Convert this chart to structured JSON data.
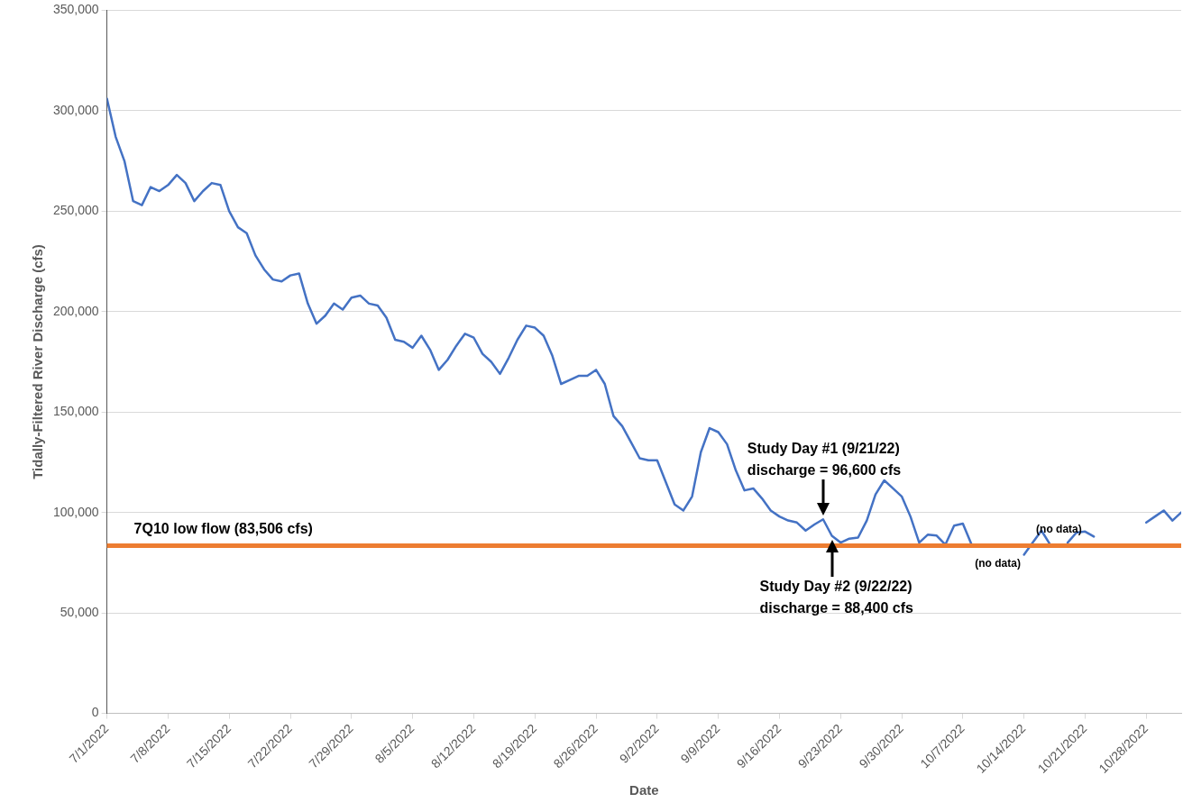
{
  "chart_data": {
    "type": "line",
    "xlabel": "Date",
    "ylabel": "Tidally-Filtered River Discharge (cfs)",
    "xlim": [
      "2022-07-01",
      "2022-11-01"
    ],
    "xticks": [
      {
        "value": "2022-07-01",
        "label": "7/1/2022"
      },
      {
        "value": "2022-07-08",
        "label": "7/8/2022"
      },
      {
        "value": "2022-07-15",
        "label": "7/15/2022"
      },
      {
        "value": "2022-07-22",
        "label": "7/22/2022"
      },
      {
        "value": "2022-07-29",
        "label": "7/29/2022"
      },
      {
        "value": "2022-08-05",
        "label": "8/5/2022"
      },
      {
        "value": "2022-08-12",
        "label": "8/12/2022"
      },
      {
        "value": "2022-08-19",
        "label": "8/19/2022"
      },
      {
        "value": "2022-08-26",
        "label": "8/26/2022"
      },
      {
        "value": "2022-09-02",
        "label": "9/2/2022"
      },
      {
        "value": "2022-09-09",
        "label": "9/9/2022"
      },
      {
        "value": "2022-09-16",
        "label": "9/16/2022"
      },
      {
        "value": "2022-09-23",
        "label": "9/23/2022"
      },
      {
        "value": "2022-09-30",
        "label": "9/30/2022"
      },
      {
        "value": "2022-10-07",
        "label": "10/7/2022"
      },
      {
        "value": "2022-10-14",
        "label": "10/14/2022"
      },
      {
        "value": "2022-10-21",
        "label": "10/21/2022"
      },
      {
        "value": "2022-10-28",
        "label": "10/28/2022"
      }
    ],
    "ylim": [
      0,
      350000
    ],
    "yticks": [
      0,
      {
        "value": 50000,
        "label": "50,000"
      },
      {
        "value": 100000,
        "label": "100,000"
      },
      {
        "value": 150000,
        "label": "150,000"
      },
      {
        "value": 200000,
        "label": "200,000"
      },
      {
        "value": 250000,
        "label": "250,000"
      },
      {
        "value": 300000,
        "label": "300,000"
      },
      {
        "value": 350000,
        "label": "350,000"
      }
    ],
    "grid": "y",
    "legend": false,
    "marker": "none",
    "line_style": "solid",
    "series": [
      {
        "color": "#4472c4",
        "x": [
          "2022-07-01",
          "2022-07-02",
          "2022-07-03",
          "2022-07-04",
          "2022-07-05",
          "2022-07-06",
          "2022-07-07",
          "2022-07-08",
          "2022-07-09",
          "2022-07-10",
          "2022-07-11",
          "2022-07-12",
          "2022-07-13",
          "2022-07-14",
          "2022-07-15",
          "2022-07-16",
          "2022-07-17",
          "2022-07-18",
          "2022-07-19",
          "2022-07-20",
          "2022-07-21",
          "2022-07-22",
          "2022-07-23",
          "2022-07-24",
          "2022-07-25",
          "2022-07-26",
          "2022-07-27",
          "2022-07-28",
          "2022-07-29",
          "2022-07-30",
          "2022-07-31",
          "2022-08-01",
          "2022-08-02",
          "2022-08-03",
          "2022-08-04",
          "2022-08-05",
          "2022-08-06",
          "2022-08-07",
          "2022-08-08",
          "2022-08-09",
          "2022-08-10",
          "2022-08-11",
          "2022-08-12",
          "2022-08-13",
          "2022-08-14",
          "2022-08-15",
          "2022-08-16",
          "2022-08-17",
          "2022-08-18",
          "2022-08-19",
          "2022-08-20",
          "2022-08-21",
          "2022-08-22",
          "2022-08-23",
          "2022-08-24",
          "2022-08-25",
          "2022-08-26",
          "2022-08-27",
          "2022-08-28",
          "2022-08-29",
          "2022-08-30",
          "2022-08-31",
          "2022-09-01",
          "2022-09-02",
          "2022-09-03",
          "2022-09-04",
          "2022-09-05",
          "2022-09-06",
          "2022-09-07",
          "2022-09-08",
          "2022-09-09",
          "2022-09-10",
          "2022-09-11",
          "2022-09-12",
          "2022-09-13",
          "2022-09-14",
          "2022-09-15",
          "2022-09-16",
          "2022-09-17",
          "2022-09-18",
          "2022-09-19",
          "2022-09-20",
          "2022-09-21",
          "2022-09-22",
          "2022-09-23",
          "2022-09-24",
          "2022-09-25",
          "2022-09-26",
          "2022-09-27",
          "2022-09-28",
          "2022-09-29",
          "2022-09-30",
          "2022-10-01",
          "2022-10-02",
          "2022-10-03",
          "2022-10-04",
          "2022-10-05",
          "2022-10-06",
          "2022-10-07",
          "2022-10-08",
          "2022-10-09",
          "2022-10-10",
          "2022-10-11",
          "2022-10-12",
          "2022-10-13",
          "2022-10-14",
          "2022-10-15",
          "2022-10-16",
          "2022-10-17",
          "2022-10-18",
          "2022-10-19",
          "2022-10-20",
          "2022-10-21",
          "2022-10-22",
          "2022-10-23",
          "2022-10-24",
          "2022-10-25",
          "2022-10-26",
          "2022-10-27",
          "2022-10-28",
          "2022-10-29",
          "2022-10-30",
          "2022-10-31",
          "2022-11-01"
        ],
        "values": [
          306000,
          287000,
          275000,
          255000,
          253000,
          262000,
          260000,
          263000,
          268000,
          264000,
          255000,
          260000,
          264000,
          263000,
          250000,
          242000,
          239000,
          228000,
          221000,
          216000,
          215000,
          218000,
          219000,
          204000,
          194000,
          198000,
          204000,
          201000,
          207000,
          208000,
          204000,
          203000,
          197000,
          186000,
          185000,
          182000,
          188000,
          181000,
          171000,
          176000,
          183000,
          189000,
          187000,
          179000,
          175000,
          169000,
          177000,
          186000,
          193000,
          192000,
          188000,
          178000,
          164000,
          166000,
          168000,
          168000,
          171000,
          164000,
          148000,
          143000,
          135000,
          127000,
          126000,
          126000,
          115000,
          104000,
          101000,
          108000,
          130000,
          142000,
          140000,
          134000,
          121000,
          111000,
          112000,
          107000,
          101000,
          98000,
          96000,
          95000,
          91000,
          94000,
          96600,
          88400,
          85000,
          87000,
          87500,
          96000,
          109000,
          116000,
          112000,
          108000,
          98000,
          85000,
          89000,
          88500,
          84000,
          93500,
          94500,
          84000,
          null,
          null,
          null,
          null,
          null,
          79000,
          85000,
          91000,
          84000,
          null,
          85000,
          90000,
          90500,
          88000,
          null,
          null,
          null,
          null,
          null,
          95000,
          98000,
          101000,
          96000,
          100000
        ]
      }
    ],
    "ref_lines": [
      {
        "axis": "y",
        "value": 83506,
        "label": "7Q10 low flow (83,506 cfs)",
        "color": "#ed7d31"
      }
    ],
    "annotations": [
      {
        "text": "Study Day #1 (9/21/22)\ndischarge = 96,600 cfs",
        "x": "2022-09-21",
        "y": 96600
      },
      {
        "text": "Study Day #2 (9/22/22)\ndischarge = 88,400 cfs",
        "x": "2022-09-22",
        "y": 88400
      },
      "(no data)",
      "(no data)"
    ]
  }
}
